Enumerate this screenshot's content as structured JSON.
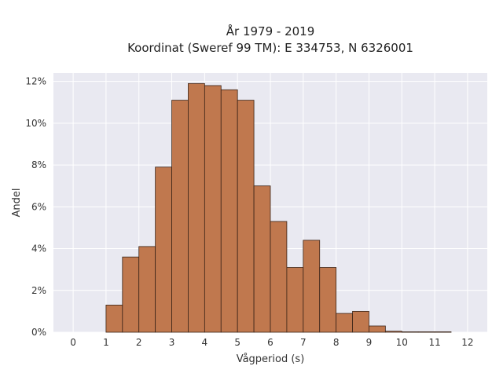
{
  "chart_data": {
    "type": "bar",
    "title": "År 1979 - 2019",
    "subtitle": "Koordinat (Sweref 99 TM): E 334753, N 6326001",
    "xlabel": "Vågperiod (s)",
    "ylabel": "Andel",
    "xlim": [
      -0.6,
      12.6
    ],
    "ylim": [
      0,
      12.4
    ],
    "x_ticks": [
      0,
      1,
      2,
      3,
      4,
      5,
      6,
      7,
      8,
      9,
      10,
      11,
      12
    ],
    "y_ticks": [
      0,
      2,
      4,
      6,
      8,
      10,
      12
    ],
    "y_tick_labels": [
      "0%",
      "2%",
      "4%",
      "6%",
      "8%",
      "10%",
      "12%"
    ],
    "bin_width": 0.5,
    "bin_starts": [
      1.0,
      1.5,
      2.0,
      2.5,
      3.0,
      3.5,
      4.0,
      4.5,
      5.0,
      5.5,
      6.0,
      6.5,
      7.0,
      7.5,
      8.0,
      8.5,
      9.0,
      9.5,
      10.0,
      10.5,
      11.0
    ],
    "values": [
      1.3,
      3.6,
      4.1,
      7.9,
      11.1,
      11.9,
      11.8,
      11.6,
      11.1,
      7.0,
      5.3,
      3.1,
      4.4,
      3.1,
      0.9,
      1.0,
      0.3,
      0.05,
      0.02,
      0.02,
      0.02
    ],
    "grid": true,
    "colors": {
      "bar_fill": "#c0784e",
      "bar_stroke": "#3a2418",
      "plot_bg": "#e9e9f1",
      "grid": "#ffffff"
    }
  }
}
